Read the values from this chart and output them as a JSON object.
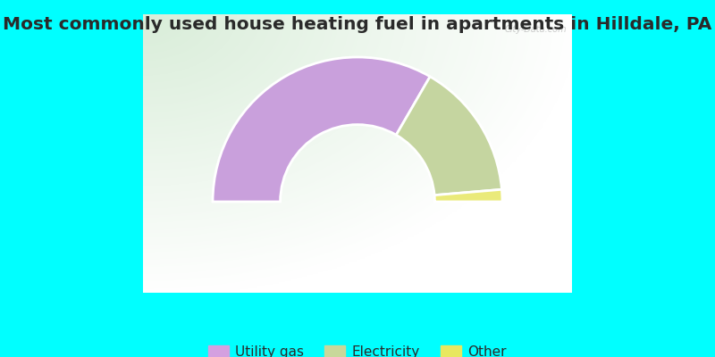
{
  "title": "Most commonly used house heating fuel in apartments in Hilldale, PA",
  "categories": [
    "Utility gas",
    "Electricity",
    "Other"
  ],
  "values": [
    66.7,
    30.6,
    2.7
  ],
  "colors": [
    "#c9a0dc",
    "#c5d5a0",
    "#eaea7a"
  ],
  "legend_colors": [
    "#d4a0e0",
    "#c8d89a",
    "#e8e860"
  ],
  "background_color": "#00ffff",
  "title_color": "#2a2a2a",
  "title_fontsize": 14.5,
  "legend_fontsize": 11
}
